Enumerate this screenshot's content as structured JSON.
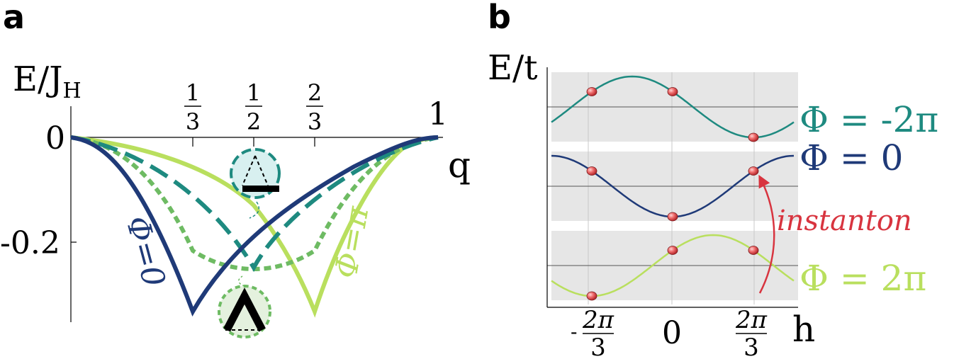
{
  "colors": {
    "navy": "#1f3a78",
    "teal": "#1e8a80",
    "lime": "#b9df5e",
    "green_dash": "#6ebb63",
    "red": "#d8343f",
    "band_gray": "#e6e6e6"
  },
  "panel_a": {
    "label": "a",
    "ylabel_main": "E/J",
    "ylabel_sub": "H",
    "xlabel": "q",
    "y_ticks": [
      {
        "value": 0,
        "label": "0"
      },
      {
        "value": -0.2,
        "label": "-0.2"
      }
    ],
    "x_ticks": [
      {
        "value": 0.3333,
        "num": "1",
        "den": "3"
      },
      {
        "value": 0.5,
        "num": "1",
        "den": "2"
      },
      {
        "value": 0.6667,
        "num": "2",
        "den": "3"
      }
    ],
    "x_end_label": "1",
    "series_labels": {
      "phi0": "Φ=0",
      "phipi": "Φ=π"
    },
    "icons": [
      "triangle-bar-icon",
      "chevron-icon"
    ]
  },
  "panel_b": {
    "label": "b",
    "ylabel": "E/t",
    "xlabel": "h",
    "x_tick_0": "0",
    "x_tick_left_sign": "-",
    "x_tick_frac_num": "2π",
    "x_tick_frac_den": "3",
    "band_labels": {
      "minus2pi": "Φ = -2π",
      "zero": "Φ = 0",
      "plus2pi": "Φ = 2π"
    },
    "arrow_label": "instanton"
  },
  "chart_data": [
    {
      "type": "line",
      "title": "",
      "xlabel": "q",
      "ylabel": "E/J_H",
      "xlim": [
        0,
        1
      ],
      "ylim": [
        -0.33,
        0.02
      ],
      "series": [
        {
          "name": "Φ=0",
          "color": "#1f3a78",
          "style": "solid",
          "x": [
            0,
            0.1,
            0.2,
            0.3333,
            0.5,
            0.7,
            0.85,
            1
          ],
          "y": [
            0,
            -0.04,
            -0.14,
            -0.325,
            -0.22,
            -0.09,
            -0.025,
            0
          ]
        },
        {
          "name": "",
          "color": "#1e8a80",
          "style": "dashed",
          "x": [
            0,
            0.1,
            0.2,
            0.3,
            0.4,
            0.5,
            0.6,
            0.7,
            0.8,
            0.9,
            1
          ],
          "y": [
            0,
            -0.02,
            -0.06,
            -0.11,
            -0.17,
            -0.245,
            -0.17,
            -0.11,
            -0.06,
            -0.02,
            0
          ]
        },
        {
          "name": "",
          "color": "#6ebb63",
          "style": "dotted",
          "x": [
            0,
            0.1,
            0.2,
            0.3333,
            0.5,
            0.6667,
            0.8,
            0.9,
            1
          ],
          "y": [
            0,
            -0.03,
            -0.09,
            -0.215,
            -0.245,
            -0.215,
            -0.09,
            -0.03,
            0
          ]
        },
        {
          "name": "Φ=π",
          "color": "#b9df5e",
          "style": "solid",
          "x": [
            0,
            0.15,
            0.3,
            0.5,
            0.6667,
            0.8,
            0.9,
            1
          ],
          "y": [
            0,
            -0.025,
            -0.09,
            -0.22,
            -0.325,
            -0.14,
            -0.04,
            0
          ]
        }
      ]
    },
    {
      "type": "line",
      "title": "",
      "xlabel": "h",
      "ylabel": "E/t",
      "xlim": [
        -3.14159,
        3.14159
      ],
      "x_ticks": [
        -2.0944,
        0,
        2.0944
      ],
      "series": [
        {
          "name": "Φ = -2π",
          "color": "#1e8a80",
          "function": "-cos(h - 2π/3)",
          "points_h": [
            -2.0944,
            0,
            2.0944
          ]
        },
        {
          "name": "Φ = 0",
          "color": "#1f3a78",
          "function": "-cos(h)",
          "points_h": [
            -2.0944,
            0,
            2.0944
          ]
        },
        {
          "name": "Φ = 2π",
          "color": "#b9df5e",
          "function": "-cos(h + 2π/3)",
          "points_h": [
            -2.0944,
            0,
            2.0944
          ]
        }
      ],
      "arrow": {
        "label": "instanton",
        "from_series": "Φ = 2π",
        "to_series": "Φ = 0",
        "at_h": 2.0944
      }
    }
  ]
}
